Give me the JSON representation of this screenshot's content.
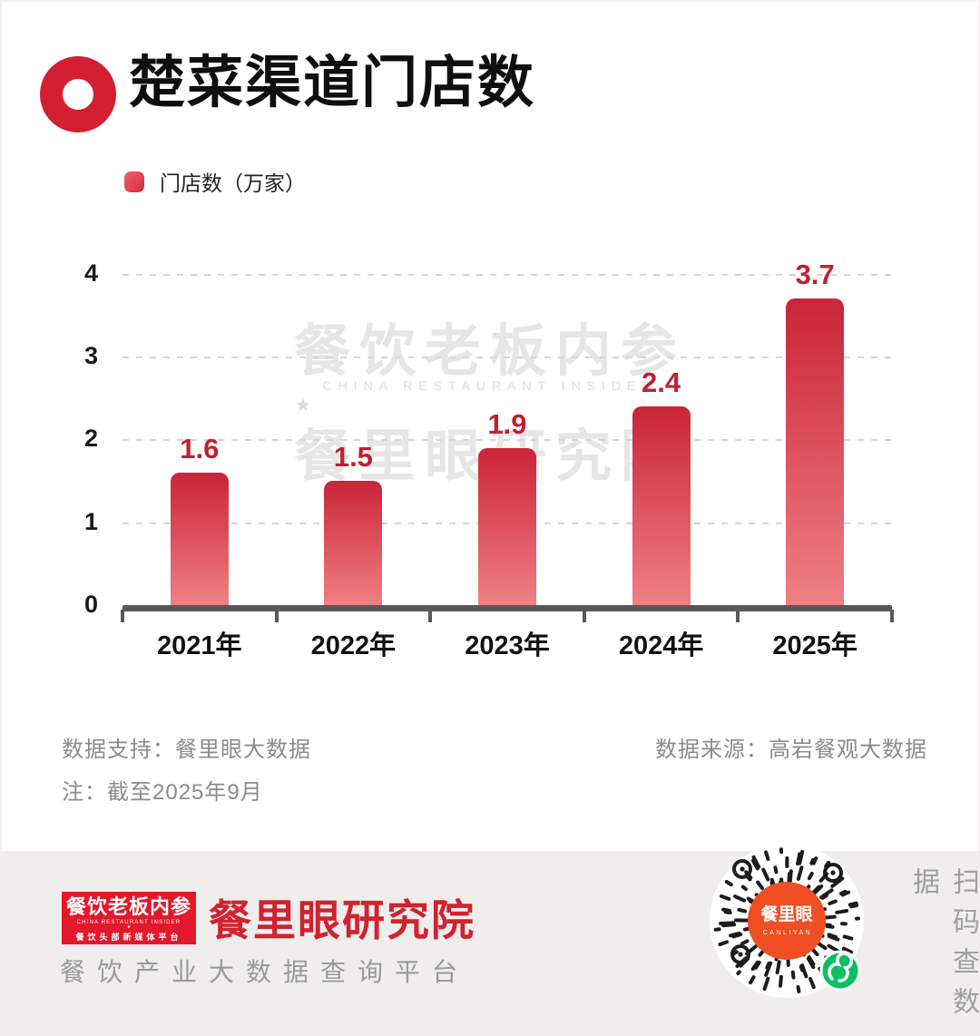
{
  "header": {
    "title": "楚菜渠道门店数"
  },
  "legend": {
    "label": "门店数（万家）"
  },
  "chart_data": {
    "type": "bar",
    "title": "楚菜渠道门店数",
    "series_name": "门店数（万家）",
    "categories": [
      "2021年",
      "2022年",
      "2023年",
      "2024年",
      "2025年"
    ],
    "values": [
      1.6,
      1.5,
      1.9,
      2.4,
      3.7
    ],
    "xlabel": "",
    "ylabel": "门店数（万家）",
    "ylim": [
      0,
      4
    ],
    "yticks": [
      0,
      1,
      2,
      3,
      4
    ],
    "grid": "horizontal-dashed",
    "legend_position": "top-left",
    "bar_color_top": "#ca2438",
    "bar_color_bottom": "#ef8084",
    "value_label_color": "#c0202f"
  },
  "watermark": {
    "line1": "餐饮老板内参",
    "line2": "CHINA RESTAURANT INSIDER",
    "star": "★",
    "line3": "餐里眼研究院"
  },
  "notes": {
    "support": "数据支持：餐里眼大数据",
    "date": "注：截至2025年9月",
    "source": "数据来源：高岩餐观大数据"
  },
  "footer": {
    "logo_line1": "餐饮老板内参",
    "logo_line2": "CHINA RESTAURANT INSIDER",
    "logo_star": "★",
    "logo_line3": "餐饮头部新媒体平台",
    "institute": "餐里眼研究院",
    "tagline": "餐饮产业大数据查询平台",
    "qr_center_line1": "餐里眼",
    "qr_center_line2": "CANLIYAN",
    "scan_text": "扫码查数据"
  },
  "colors": {
    "accent_red": "#d41e32",
    "bar_top": "#ca2438",
    "bar_bottom": "#ef8084",
    "axis_gray": "#58585a",
    "note_gray": "#8b8b8b",
    "footer_bg": "#efeeec",
    "logo_red": "#e2182c",
    "qr_orange": "#f04f23",
    "wechat_green": "#07c160"
  }
}
